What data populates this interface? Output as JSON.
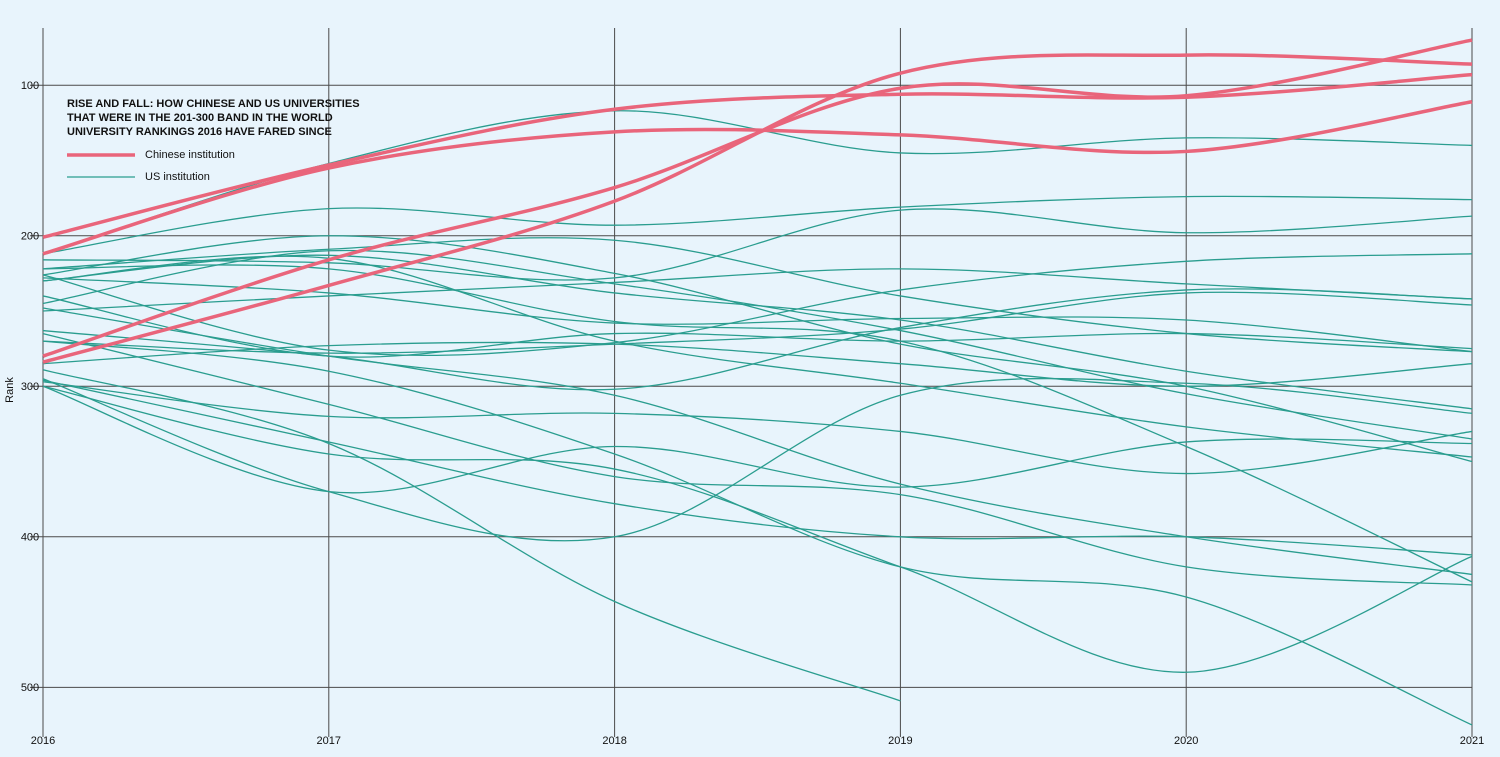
{
  "chart_data": {
    "type": "line",
    "title": [
      "RISE AND FALL: HOW CHINESE AND US UNIVERSITIES",
      "THAT WERE IN THE 201-300 BAND IN THE WORLD",
      "UNIVERSITY RANKINGS 2016 HAVE FARED SINCE"
    ],
    "ylabel": "Rank",
    "x": [
      2016,
      2017,
      2018,
      2019,
      2020,
      2021
    ],
    "xlim": [
      2016,
      2021
    ],
    "xticks": [
      2016,
      2017,
      2018,
      2019,
      2020,
      2021
    ],
    "ylim": [
      533,
      62
    ],
    "yticks": [
      100,
      200,
      300,
      400,
      500
    ],
    "grid": true,
    "series": [
      {
        "name": "Chinese institution",
        "color": "#e9657b",
        "values": [
          [
            201,
            153,
            116,
            106,
            108,
            93
          ],
          [
            212,
            155,
            131,
            133,
            144,
            111
          ],
          [
            280,
            216,
            168,
            102,
            107,
            70
          ],
          [
            284,
            233,
            177,
            92,
            80,
            86
          ]
        ]
      },
      {
        "name": "US institution",
        "color": "#2a9d8f",
        "values": [
          [
            212,
            152,
            117,
            145,
            135,
            140
          ],
          [
            212,
            182,
            193,
            181,
            174,
            176
          ],
          [
            222,
            209,
            203,
            240,
            265,
            277
          ],
          [
            226,
            200,
            225,
            272,
            300,
            350
          ],
          [
            230,
            213,
            238,
            256,
            290,
            315
          ],
          [
            245,
            210,
            232,
            263,
            305,
            335
          ],
          [
            250,
            240,
            231,
            222,
            232,
            242
          ],
          [
            216,
            218,
            228,
            183,
            198,
            187
          ],
          [
            226,
            276,
            271,
            236,
            217,
            212
          ],
          [
            270,
            278,
            272,
            262,
            238,
            246
          ],
          [
            263,
            280,
            302,
            261,
            236,
            242
          ],
          [
            228,
            238,
            258,
            255,
            256,
            277
          ],
          [
            285,
            273,
            272,
            285,
            300,
            285
          ],
          [
            297,
            320,
            318,
            330,
            358,
            330
          ],
          [
            300,
            370,
            340,
            367,
            337,
            338
          ],
          [
            296,
            337,
            378,
            400,
            400,
            412
          ],
          [
            295,
            370,
            400,
            306,
            298,
            318
          ],
          [
            289,
            338,
            443,
            509,
            null,
            null
          ],
          [
            300,
            345,
            355,
            420,
            490,
            413
          ],
          [
            270,
            290,
            345,
            420,
            440,
            525
          ],
          [
            265,
            312,
            360,
            372,
            420,
            432
          ],
          [
            222,
            222,
            257,
            270,
            340,
            430
          ],
          [
            248,
            280,
            306,
            365,
            400,
            425
          ],
          [
            230,
            215,
            270,
            298,
            327,
            347
          ],
          [
            240,
            280,
            265,
            270,
            265,
            275
          ]
        ]
      }
    ]
  }
}
